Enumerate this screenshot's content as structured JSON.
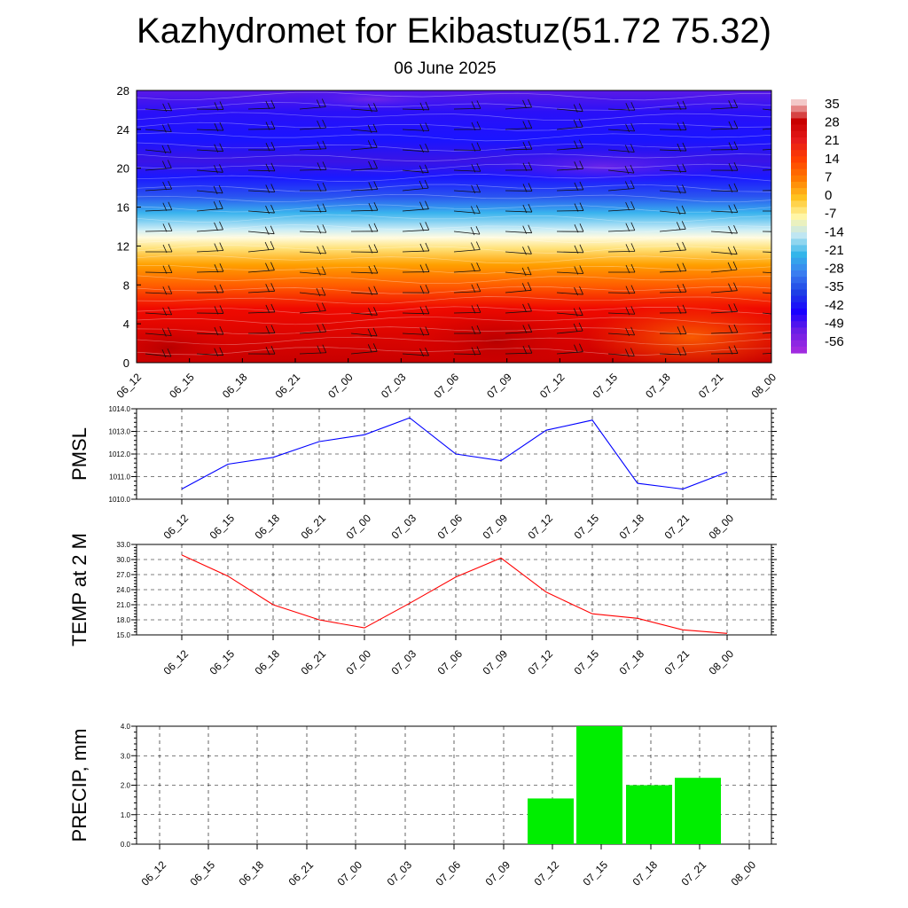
{
  "header": {
    "title": "Kazhydromet for Ekibastuz(51.72 75.32)",
    "subtitle": "06 June 2025"
  },
  "chart_data": [
    {
      "type": "heatmap",
      "name": "temperature-cross-section",
      "title": "",
      "x": [
        "06_12",
        "06_15",
        "06_18",
        "06_21",
        "07_00",
        "07_03",
        "07_06",
        "07_09",
        "07_12",
        "07_15",
        "07_18",
        "07_21",
        "08_00"
      ],
      "ylim": [
        0,
        28
      ],
      "y_ticks": [
        0,
        4,
        8,
        12,
        16,
        20,
        24,
        28
      ],
      "colorbar": {
        "labels": [
          35,
          28,
          21,
          14,
          7,
          0,
          -7,
          -14,
          -21,
          -28,
          -35,
          -42,
          -49,
          -56
        ],
        "colors": [
          "#f3c9c9",
          "#c80000",
          "#e61b1b",
          "#ff4000",
          "#ff7a00",
          "#ffc21f",
          "#fff6a6",
          "#bfe6f2",
          "#33b5ea",
          "#3a7df0",
          "#1e3fe6",
          "#1a00ff",
          "#6a1ee6",
          "#a02be0"
        ]
      },
      "annotations": "wind barbs overlay"
    },
    {
      "type": "line",
      "name": "pmsl",
      "ylabel": "PMSL",
      "ylim": [
        1010.0,
        1014.0
      ],
      "y_ticks": [
        "1010.0",
        "1011.0",
        "1012.0",
        "1013.0",
        "1014.0"
      ],
      "x": [
        "06_12",
        "06_15",
        "06_18",
        "06_21",
        "07_00",
        "07_03",
        "07_06",
        "07_09",
        "07_12",
        "07_15",
        "07_18",
        "07_21",
        "08_00"
      ],
      "series": [
        {
          "color": "#0000ff",
          "values": [
            1010.45,
            1011.55,
            1011.85,
            1012.55,
            1012.85,
            1013.6,
            1012.0,
            1011.7,
            1013.05,
            1013.5,
            1010.7,
            1010.45,
            1011.2
          ]
        }
      ]
    },
    {
      "type": "line",
      "name": "temp2m",
      "ylabel": "TEMP at 2 M",
      "ylim": [
        15.0,
        33.0
      ],
      "y_ticks": [
        "15.0",
        "18.0",
        "21.0",
        "24.0",
        "27.0",
        "30.0",
        "33.0"
      ],
      "x": [
        "06_12",
        "06_15",
        "06_18",
        "06_21",
        "07_00",
        "07_03",
        "07_06",
        "07_09",
        "07_12",
        "07_15",
        "07_18",
        "07_21",
        "08_00"
      ],
      "series": [
        {
          "color": "#ff0000",
          "values": [
            30.9,
            26.7,
            21.0,
            18.0,
            16.4,
            21.3,
            26.5,
            30.3,
            23.5,
            19.2,
            18.3,
            16.0,
            15.3
          ]
        }
      ]
    },
    {
      "type": "bar",
      "name": "precip",
      "ylabel": "PRECIP, mm",
      "ylim": [
        0.0,
        4.0
      ],
      "y_ticks": [
        "0.0",
        "1.0",
        "2.0",
        "3.0",
        "4.0"
      ],
      "categories": [
        "06_12",
        "06_15",
        "06_18",
        "06_21",
        "07_00",
        "07_03",
        "07_06",
        "07_09",
        "07_12",
        "07_15",
        "07_18",
        "07_21",
        "08_00"
      ],
      "series": [
        {
          "color": "#00ee00",
          "values": [
            0,
            0,
            0,
            0,
            0,
            0,
            0,
            0,
            1.55,
            4.0,
            2.0,
            2.25,
            0
          ]
        }
      ]
    }
  ]
}
